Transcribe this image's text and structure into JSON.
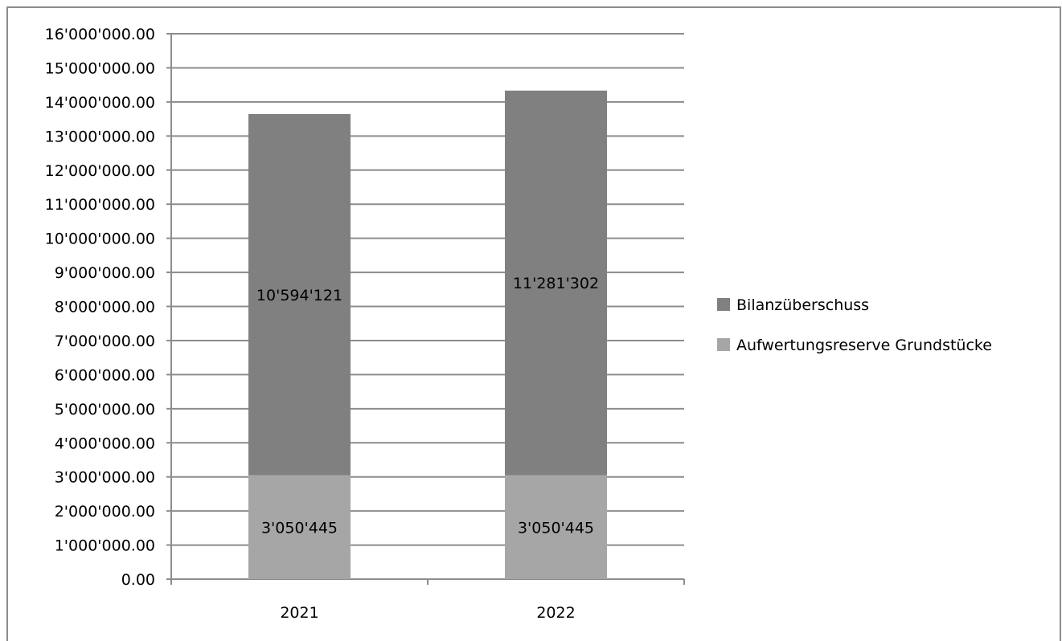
{
  "chart_data": {
    "type": "bar",
    "stacked": true,
    "categories": [
      "2021",
      "2022"
    ],
    "series": [
      {
        "name": "Aufwertungsreserve Grundstücke",
        "values": [
          3050445,
          3050445
        ],
        "labels": [
          "3'050'445",
          "3'050'445"
        ],
        "color": "#a6a6a6"
      },
      {
        "name": "Bilanzüberschuss",
        "values": [
          10594121,
          11281302
        ],
        "labels": [
          "10'594'121",
          "11'281'302"
        ],
        "color": "#808080"
      }
    ],
    "ylim": [
      0,
      16000000
    ],
    "ytick_step": 1000000,
    "ytick_labels": [
      "0.00",
      "1'000'000.00",
      "2'000'000.00",
      "3'000'000.00",
      "4'000'000.00",
      "5'000'000.00",
      "6'000'000.00",
      "7'000'000.00",
      "8'000'000.00",
      "9'000'000.00",
      "10'000'000.00",
      "11'000'000.00",
      "12'000'000.00",
      "13'000'000.00",
      "14'000'000.00",
      "15'000'000.00",
      "16'000'000.00"
    ],
    "legend": {
      "position": "right",
      "order": [
        "Bilanzüberschuss",
        "Aufwertungsreserve Grundstücke"
      ]
    },
    "grid": true,
    "title": "",
    "xlabel": "",
    "ylabel": ""
  }
}
